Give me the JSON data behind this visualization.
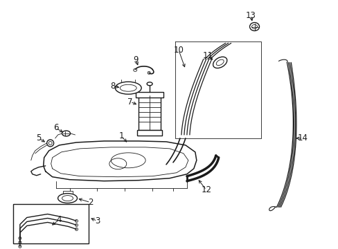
{
  "background_color": "#ffffff",
  "line_color": "#1a1a1a",
  "lw": 1.0,
  "tlw": 0.6,
  "fs": 8.5,
  "fig_width": 4.89,
  "fig_height": 3.6,
  "dpi": 100
}
